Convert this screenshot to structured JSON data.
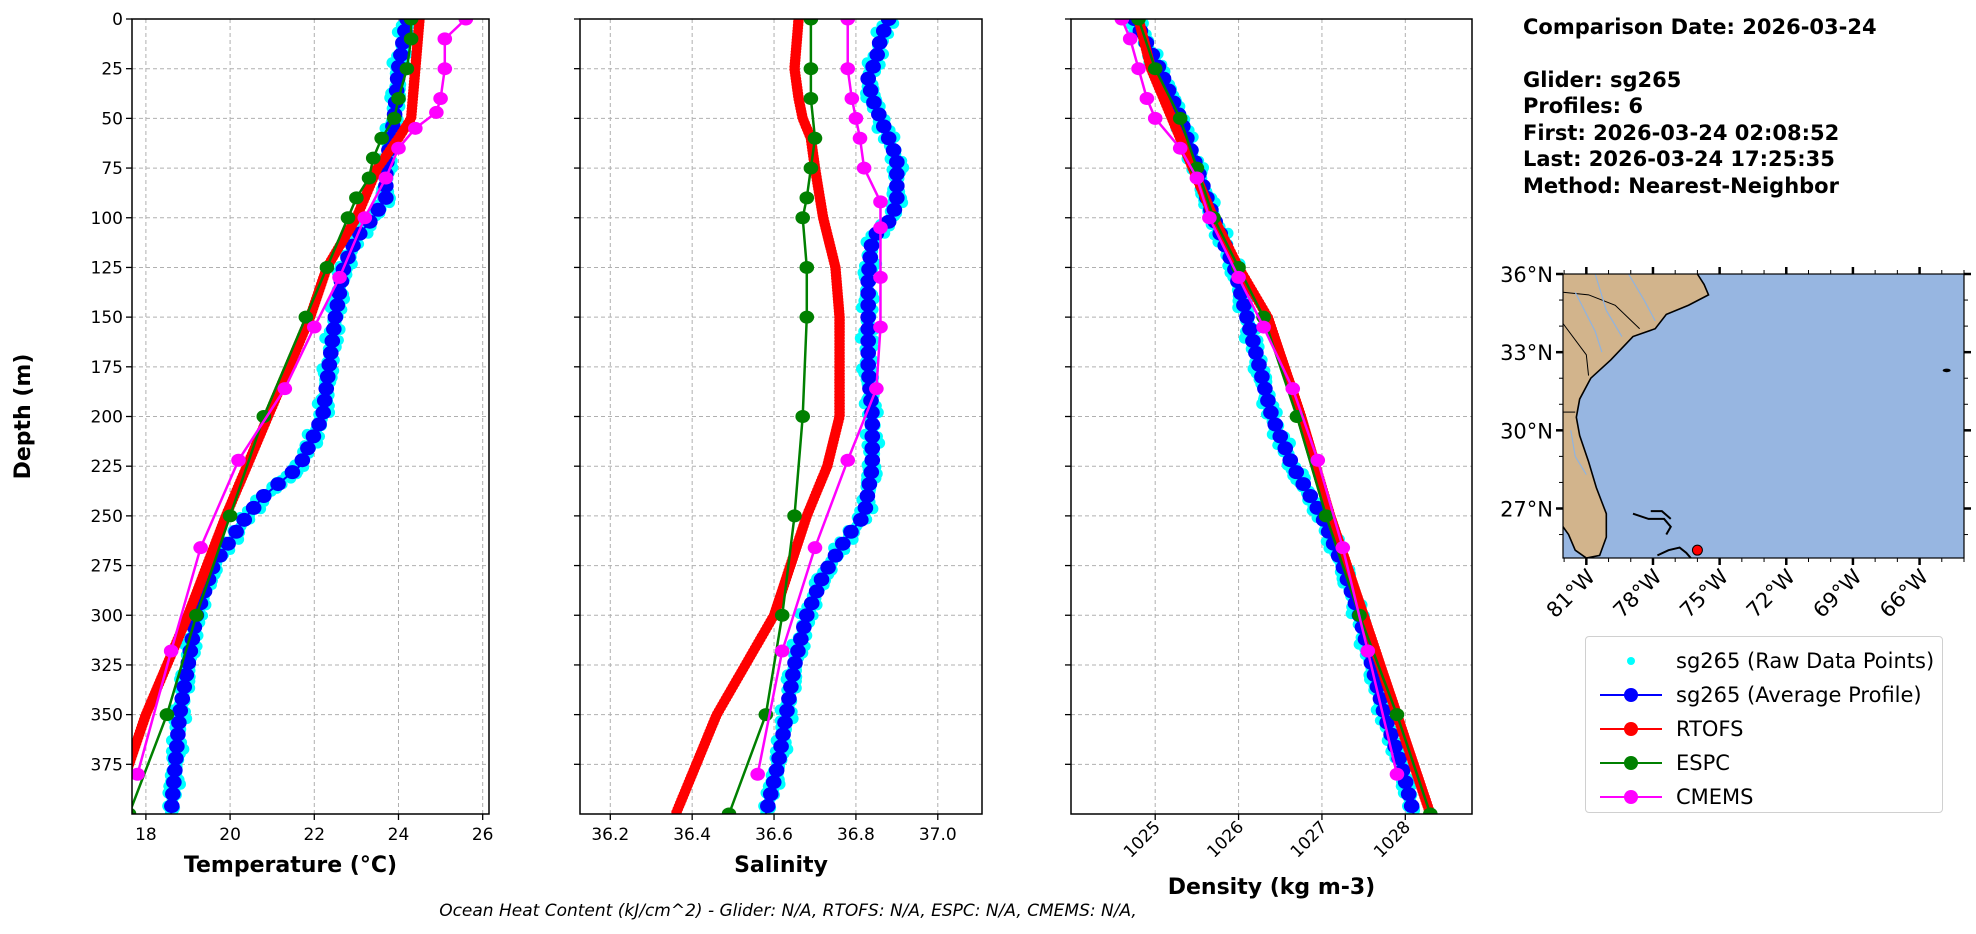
{
  "info": {
    "comparison_date": "Comparison Date: 2026-03-24",
    "glider": "Glider: sg265",
    "profiles": "Profiles: 6",
    "first": "First: 2026-03-24 02:08:52",
    "last": "Last: 2026-03-24 17:25:35",
    "method": "Method: Nearest-Neighbor"
  },
  "footer": "Ocean Heat Content (kJ/cm^2) - Glider: N/A,  RTOFS: N/A,  ESPC: N/A,  CMEMS: N/A,",
  "legend": [
    {
      "label": "sg265 (Raw Data Points)",
      "color": "#00ffff",
      "style": "points"
    },
    {
      "label": "sg265 (Average Profile)",
      "color": "#0000ff",
      "style": "line-marker"
    },
    {
      "label": "RTOFS",
      "color": "#ff0000",
      "style": "line-marker"
    },
    {
      "label": "ESPC",
      "color": "#008000",
      "style": "line-marker"
    },
    {
      "label": "CMEMS",
      "color": "#ff00ff",
      "style": "line-marker"
    }
  ],
  "chart_data": [
    {
      "type": "line",
      "xlabel": "Temperature (°C)",
      "ylabel": "Depth (m)",
      "xlim": [
        17.67,
        26.15
      ],
      "ylim": [
        400,
        0
      ],
      "xticks": [
        18,
        20,
        22,
        24,
        26
      ],
      "yticks": [
        0,
        25,
        50,
        75,
        100,
        125,
        150,
        175,
        200,
        225,
        250,
        275,
        300,
        325,
        350,
        375
      ],
      "grid": true,
      "depth_series": [
        {
          "name": "sg265 (Average Profile)",
          "depth": [
            0,
            25,
            50,
            75,
            90,
            100,
            110,
            125,
            150,
            200,
            225,
            240,
            250,
            275,
            300,
            350,
            400
          ],
          "values": [
            24.2,
            24.0,
            23.9,
            23.7,
            23.7,
            23.4,
            23.0,
            22.7,
            22.5,
            22.2,
            21.65,
            20.8,
            20.4,
            19.6,
            19.2,
            18.8,
            18.6
          ]
        },
        {
          "name": "RTOFS",
          "depth": [
            0,
            25,
            50,
            60,
            75,
            100,
            125,
            150,
            200,
            250,
            300,
            350,
            400
          ],
          "values": [
            24.5,
            24.4,
            24.3,
            24.0,
            23.5,
            23.0,
            22.3,
            21.9,
            20.9,
            19.9,
            19.0,
            18.0,
            17.2
          ]
        },
        {
          "name": "ESPC",
          "depth": [
            0,
            10,
            25,
            40,
            50,
            60,
            70,
            80,
            90,
            100,
            125,
            150,
            200,
            250,
            300,
            350,
            400
          ],
          "values": [
            24.3,
            24.3,
            24.2,
            24.0,
            23.9,
            23.6,
            23.4,
            23.3,
            23.0,
            22.8,
            22.3,
            21.8,
            20.8,
            20.0,
            19.2,
            18.5,
            17.6
          ]
        },
        {
          "name": "CMEMS",
          "depth": [
            0,
            10,
            25,
            40,
            47,
            55,
            65,
            80,
            100,
            130,
            155,
            186,
            222,
            266,
            318,
            380
          ],
          "values": [
            25.6,
            25.1,
            25.1,
            25.0,
            24.9,
            24.4,
            24.0,
            23.7,
            23.2,
            22.6,
            22.0,
            21.3,
            20.2,
            19.3,
            18.6,
            17.8
          ]
        }
      ]
    },
    {
      "type": "line",
      "xlabel": "Salinity",
      "xlim": [
        36.126,
        37.108
      ],
      "ylim": [
        400,
        0
      ],
      "xticks": [
        "36.2",
        "36.4",
        "36.6",
        "36.8",
        "37.0"
      ],
      "grid": true,
      "depth_series": [
        {
          "name": "sg265 (Average Profile)",
          "depth": [
            0,
            10,
            20,
            30,
            40,
            50,
            60,
            70,
            80,
            90,
            100,
            110,
            130,
            150,
            175,
            200,
            225,
            250,
            260,
            280,
            300,
            325,
            350,
            375,
            400
          ],
          "values": [
            36.88,
            36.86,
            36.85,
            36.83,
            36.84,
            36.86,
            36.88,
            36.9,
            36.9,
            36.9,
            36.89,
            36.84,
            36.83,
            36.83,
            36.83,
            36.84,
            36.84,
            36.82,
            36.78,
            36.72,
            36.68,
            36.65,
            36.63,
            36.61,
            36.58
          ]
        },
        {
          "name": "RTOFS",
          "depth": [
            0,
            25,
            40,
            50,
            60,
            75,
            100,
            125,
            150,
            175,
            200,
            225,
            250,
            275,
            300,
            325,
            350,
            375,
            400
          ],
          "values": [
            36.66,
            36.65,
            36.66,
            36.67,
            36.69,
            36.7,
            36.72,
            36.75,
            36.76,
            36.76,
            36.76,
            36.73,
            36.68,
            36.64,
            36.6,
            36.53,
            36.46,
            36.41,
            36.36
          ]
        },
        {
          "name": "ESPC",
          "depth": [
            0,
            25,
            40,
            60,
            75,
            90,
            100,
            125,
            150,
            200,
            250,
            300,
            350,
            400
          ],
          "values": [
            36.69,
            36.69,
            36.69,
            36.7,
            36.69,
            36.68,
            36.67,
            36.68,
            36.68,
            36.67,
            36.65,
            36.62,
            36.58,
            36.49
          ]
        },
        {
          "name": "CMEMS",
          "depth": [
            0,
            25,
            40,
            50,
            60,
            75,
            92,
            105,
            130,
            155,
            186,
            222,
            266,
            318,
            380
          ],
          "values": [
            36.78,
            36.78,
            36.79,
            36.8,
            36.81,
            36.82,
            36.86,
            36.86,
            36.86,
            36.86,
            36.85,
            36.78,
            36.7,
            36.62,
            36.56
          ]
        }
      ]
    },
    {
      "type": "line",
      "xlabel": "Density (kg m-3)",
      "xlim": [
        1023.99,
        1028.8
      ],
      "ylim": [
        400,
        0
      ],
      "xticks": [
        "1025",
        "1026",
        "1027",
        "1028"
      ],
      "grid": true,
      "depth_series": [
        {
          "name": "sg265 (Average Profile)",
          "depth": [
            0,
            25,
            50,
            75,
            100,
            125,
            150,
            175,
            200,
            225,
            250,
            275,
            300,
            325,
            350,
            375,
            400
          ],
          "values": [
            1024.75,
            1025.05,
            1025.3,
            1025.5,
            1025.7,
            1025.95,
            1026.1,
            1026.25,
            1026.4,
            1026.65,
            1027.0,
            1027.25,
            1027.45,
            1027.6,
            1027.75,
            1027.95,
            1028.1
          ]
        },
        {
          "name": "RTOFS",
          "depth": [
            0,
            25,
            50,
            75,
            100,
            125,
            150,
            200,
            250,
            300,
            350,
            400
          ],
          "values": [
            1024.8,
            1024.95,
            1025.2,
            1025.45,
            1025.7,
            1026.0,
            1026.35,
            1026.75,
            1027.1,
            1027.5,
            1027.9,
            1028.3
          ]
        },
        {
          "name": "ESPC",
          "depth": [
            0,
            25,
            50,
            75,
            100,
            125,
            150,
            200,
            250,
            300,
            350,
            400
          ],
          "values": [
            1024.8,
            1025.0,
            1025.3,
            1025.5,
            1025.7,
            1026.0,
            1026.3,
            1026.7,
            1027.05,
            1027.45,
            1027.9,
            1028.3
          ]
        },
        {
          "name": "CMEMS",
          "depth": [
            0,
            10,
            25,
            40,
            50,
            65,
            80,
            100,
            130,
            155,
            186,
            222,
            266,
            318,
            380
          ],
          "values": [
            1024.6,
            1024.7,
            1024.8,
            1024.9,
            1025.0,
            1025.3,
            1025.5,
            1025.65,
            1026.0,
            1026.3,
            1026.65,
            1026.95,
            1027.25,
            1027.55,
            1027.9
          ]
        }
      ]
    }
  ],
  "map": {
    "lon_range": [
      -82.05,
      -64.0
    ],
    "lat_range": [
      25.1,
      36.0
    ],
    "lon_ticks": [
      "81°W",
      "78°W",
      "75°W",
      "72°W",
      "69°W",
      "66°W"
    ],
    "lat_ticks": [
      "36°N",
      "33°N",
      "30°N",
      "27°N"
    ],
    "land_color": "#d2b48c",
    "ocean_color": "#97b6e1",
    "glider_position": {
      "lon": -76.0,
      "lat": 25.4,
      "color": "#ff0000"
    }
  },
  "colors": {
    "raw": "#00ffff",
    "avg": "#0000ff",
    "rtofs": "#ff0000",
    "espc": "#008000",
    "cmems": "#ff00ff"
  }
}
